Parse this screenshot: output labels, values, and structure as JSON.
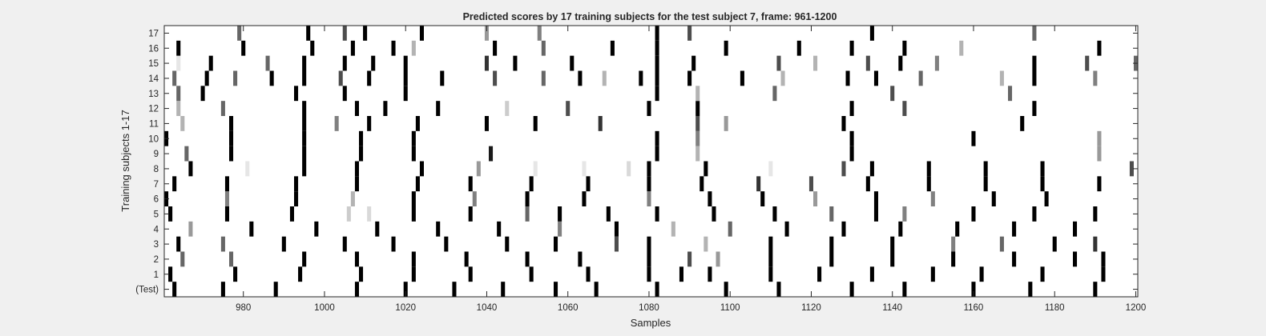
{
  "chart_data": {
    "type": "heatmap",
    "title": "Predicted scores by 17 training subjects for the test subject 7, frame: 961-1200",
    "xlabel": "Samples",
    "ylabel": "Training subjects 1-17",
    "xlim": [
      961,
      1200
    ],
    "x_ticks": [
      980,
      1000,
      1020,
      1040,
      1060,
      1080,
      1100,
      1120,
      1140,
      1160,
      1180,
      1200
    ],
    "rows": [
      "(Test)",
      "1",
      "2",
      "3",
      "4",
      "5",
      "6",
      "7",
      "8",
      "9",
      "10",
      "11",
      "12",
      "13",
      "14",
      "15",
      "16",
      "17"
    ],
    "colormap": "gray reversed (white = 0, black = 1)",
    "background": "#f0f0f0",
    "grid": false,
    "legend": "none",
    "marks": [
      [
        [
          963,
          1
        ],
        [
          975,
          1
        ],
        [
          988,
          1
        ],
        [
          1008,
          1
        ],
        [
          1020,
          1
        ],
        [
          1032,
          1
        ],
        [
          1044,
          1
        ],
        [
          1057,
          1
        ],
        [
          1067,
          1
        ],
        [
          1082,
          1
        ],
        [
          1099,
          1
        ],
        [
          1112,
          1
        ],
        [
          1130,
          1
        ],
        [
          1143,
          1
        ],
        [
          1160,
          1
        ],
        [
          1174,
          1
        ],
        [
          1190,
          1
        ]
      ],
      [
        [
          962,
          1
        ],
        [
          978,
          1
        ],
        [
          994,
          1
        ],
        [
          1009,
          1
        ],
        [
          1022,
          1
        ],
        [
          1036,
          1
        ],
        [
          1051,
          1
        ],
        [
          1065,
          1
        ],
        [
          1080,
          1
        ],
        [
          1088,
          1
        ],
        [
          1095,
          1
        ],
        [
          1110,
          1
        ],
        [
          1122,
          1
        ],
        [
          1135,
          1
        ],
        [
          1150,
          1
        ],
        [
          1162,
          1
        ],
        [
          1177,
          1
        ],
        [
          1192,
          1
        ]
      ],
      [
        [
          965,
          0.6
        ],
        [
          977,
          0.6
        ],
        [
          995,
          1
        ],
        [
          1008,
          1
        ],
        [
          1022,
          1
        ],
        [
          1035,
          1
        ],
        [
          1050,
          1
        ],
        [
          1063,
          1
        ],
        [
          1080,
          1
        ],
        [
          1090,
          0.7
        ],
        [
          1097,
          0.4
        ],
        [
          1110,
          1
        ],
        [
          1125,
          1
        ],
        [
          1140,
          1
        ],
        [
          1155,
          1
        ],
        [
          1170,
          1
        ],
        [
          1185,
          1
        ],
        [
          1192,
          1
        ]
      ],
      [
        [
          964,
          1
        ],
        [
          975,
          0.6
        ],
        [
          990,
          1
        ],
        [
          1005,
          1
        ],
        [
          1017,
          1
        ],
        [
          1030,
          1
        ],
        [
          1045,
          1
        ],
        [
          1057,
          1
        ],
        [
          1072,
          0.7
        ],
        [
          1080,
          1
        ],
        [
          1094,
          0.3
        ],
        [
          1110,
          1
        ],
        [
          1125,
          1
        ],
        [
          1140,
          1
        ],
        [
          1155,
          0.5
        ],
        [
          1167,
          0.6
        ],
        [
          1180,
          1
        ],
        [
          1190,
          0.8
        ]
      ],
      [
        [
          967,
          0.4
        ],
        [
          982,
          1
        ],
        [
          998,
          1
        ],
        [
          1013,
          1
        ],
        [
          1028,
          1
        ],
        [
          1043,
          1
        ],
        [
          1058,
          0.5
        ],
        [
          1072,
          1
        ],
        [
          1086,
          0.3
        ],
        [
          1100,
          0.6
        ],
        [
          1114,
          1
        ],
        [
          1128,
          1
        ],
        [
          1142,
          1
        ],
        [
          1156,
          1
        ],
        [
          1170,
          1
        ],
        [
          1185,
          1
        ]
      ],
      [
        [
          962,
          1
        ],
        [
          976,
          1
        ],
        [
          992,
          1
        ],
        [
          1006,
          0.2
        ],
        [
          1011,
          0.15
        ],
        [
          1022,
          1
        ],
        [
          1036,
          1
        ],
        [
          1050,
          0.6
        ],
        [
          1058,
          1
        ],
        [
          1070,
          1
        ],
        [
          1082,
          1
        ],
        [
          1096,
          1
        ],
        [
          1111,
          1
        ],
        [
          1125,
          0.6
        ],
        [
          1136,
          1
        ],
        [
          1143,
          0.5
        ],
        [
          1160,
          1
        ],
        [
          1175,
          1
        ],
        [
          1190,
          1
        ]
      ],
      [
        [
          961,
          1
        ],
        [
          976,
          0.5
        ],
        [
          993,
          1
        ],
        [
          1007,
          0.3
        ],
        [
          1022,
          1
        ],
        [
          1037,
          0.5
        ],
        [
          1050,
          1
        ],
        [
          1064,
          1
        ],
        [
          1080,
          0.5
        ],
        [
          1095,
          1
        ],
        [
          1108,
          1
        ],
        [
          1121,
          0.4
        ],
        [
          1136,
          1
        ],
        [
          1150,
          0.5
        ],
        [
          1165,
          1
        ],
        [
          1178,
          1
        ]
      ],
      [
        [
          963,
          1
        ],
        [
          976,
          1
        ],
        [
          993,
          1
        ],
        [
          1008,
          1
        ],
        [
          1023,
          1
        ],
        [
          1036,
          1
        ],
        [
          1051,
          1
        ],
        [
          1065,
          1
        ],
        [
          1080,
          1
        ],
        [
          1093,
          1
        ],
        [
          1107,
          0.8
        ],
        [
          1120,
          0.7
        ],
        [
          1134,
          1
        ],
        [
          1149,
          1
        ],
        [
          1163,
          1
        ],
        [
          1177,
          1
        ],
        [
          1191,
          1
        ]
      ],
      [
        [
          967,
          1
        ],
        [
          981,
          0.1
        ],
        [
          995,
          1
        ],
        [
          1008,
          1
        ],
        [
          1024,
          1
        ],
        [
          1038,
          0.4
        ],
        [
          1052,
          0.1
        ],
        [
          1064,
          0.1
        ],
        [
          1075,
          0.15
        ],
        [
          1080,
          1
        ],
        [
          1094,
          1
        ],
        [
          1110,
          0.1
        ],
        [
          1128,
          0.7
        ],
        [
          1135,
          1
        ],
        [
          1149,
          1
        ],
        [
          1163,
          1
        ],
        [
          1177,
          1
        ],
        [
          1199,
          0.7
        ]
      ],
      [
        [
          966,
          0.6
        ],
        [
          977,
          1
        ],
        [
          995,
          1
        ],
        [
          1009,
          1
        ],
        [
          1022,
          1
        ],
        [
          1041,
          0.9
        ],
        [
          1082,
          1
        ],
        [
          1092,
          0.3
        ],
        [
          1130,
          1
        ],
        [
          1191,
          0.4
        ]
      ],
      [
        [
          961,
          1
        ],
        [
          977,
          1
        ],
        [
          995,
          1
        ],
        [
          1009,
          1
        ],
        [
          1022,
          1
        ],
        [
          1082,
          1
        ],
        [
          1092,
          0.5
        ],
        [
          1130,
          1
        ],
        [
          1160,
          1
        ],
        [
          1191,
          0.4
        ]
      ],
      [
        [
          965,
          0.3
        ],
        [
          977,
          1
        ],
        [
          995,
          1
        ],
        [
          1003,
          0.5
        ],
        [
          1011,
          1
        ],
        [
          1023,
          1
        ],
        [
          1040,
          1
        ],
        [
          1052,
          1
        ],
        [
          1068,
          0.8
        ],
        [
          1092,
          0.7
        ],
        [
          1099,
          0.4
        ],
        [
          1128,
          1
        ],
        [
          1172,
          1
        ]
      ],
      [
        [
          964,
          0.3
        ],
        [
          975,
          0.6
        ],
        [
          995,
          1
        ],
        [
          1008,
          1
        ],
        [
          1015,
          1
        ],
        [
          1028,
          1
        ],
        [
          1045,
          0.2
        ],
        [
          1060,
          0.7
        ],
        [
          1080,
          1
        ],
        [
          1092,
          1
        ],
        [
          1130,
          1
        ],
        [
          1143,
          0.7
        ],
        [
          1175,
          1
        ]
      ],
      [
        [
          964,
          0.6
        ],
        [
          970,
          1
        ],
        [
          993,
          1
        ],
        [
          1005,
          1
        ],
        [
          1020,
          1
        ],
        [
          1082,
          1
        ],
        [
          1092,
          0.3
        ],
        [
          1111,
          0.6
        ],
        [
          1140,
          0.7
        ],
        [
          1169,
          0.6
        ]
      ],
      [
        [
          963,
          0.6
        ],
        [
          971,
          1
        ],
        [
          978,
          0.6
        ],
        [
          987,
          1
        ],
        [
          995,
          1
        ],
        [
          1004,
          0.7
        ],
        [
          1011,
          1
        ],
        [
          1020,
          1
        ],
        [
          1029,
          1
        ],
        [
          1042,
          0.7
        ],
        [
          1054,
          0.6
        ],
        [
          1063,
          1
        ],
        [
          1069,
          0.3
        ],
        [
          1078,
          1
        ],
        [
          1082,
          1
        ],
        [
          1090,
          1
        ],
        [
          1103,
          1
        ],
        [
          1113,
          0.3
        ],
        [
          1129,
          1
        ],
        [
          1136,
          1
        ],
        [
          1147,
          0.6
        ],
        [
          1167,
          0.3
        ],
        [
          1175,
          1
        ],
        [
          1190,
          0.5
        ]
      ],
      [
        [
          964,
          0.1
        ],
        [
          972,
          1
        ],
        [
          986,
          0.6
        ],
        [
          995,
          1
        ],
        [
          1005,
          1
        ],
        [
          1012,
          1
        ],
        [
          1020,
          1
        ],
        [
          1040,
          0.8
        ],
        [
          1047,
          1
        ],
        [
          1061,
          1
        ],
        [
          1082,
          1
        ],
        [
          1091,
          1
        ],
        [
          1112,
          0.7
        ],
        [
          1121,
          0.3
        ],
        [
          1134,
          0.7
        ],
        [
          1142,
          1
        ],
        [
          1151,
          0.5
        ],
        [
          1175,
          1
        ],
        [
          1188,
          0.7
        ],
        [
          1200,
          0.6
        ]
      ],
      [
        [
          964,
          1
        ],
        [
          980,
          1
        ],
        [
          997,
          1
        ],
        [
          1007,
          1
        ],
        [
          1017,
          1
        ],
        [
          1022,
          0.3
        ],
        [
          1042,
          1
        ],
        [
          1054,
          0.6
        ],
        [
          1071,
          1
        ],
        [
          1082,
          1
        ],
        [
          1099,
          1
        ],
        [
          1117,
          1
        ],
        [
          1130,
          1
        ],
        [
          1143,
          1
        ],
        [
          1157,
          0.3
        ],
        [
          1191,
          1
        ]
      ],
      [
        [
          979,
          0.6
        ],
        [
          996,
          1
        ],
        [
          1005,
          0.7
        ],
        [
          1010,
          1
        ],
        [
          1024,
          1
        ],
        [
          1040,
          0.4
        ],
        [
          1053,
          0.5
        ],
        [
          1082,
          1
        ],
        [
          1090,
          0.7
        ],
        [
          1135,
          1
        ],
        [
          1175,
          0.6
        ]
      ]
    ]
  }
}
